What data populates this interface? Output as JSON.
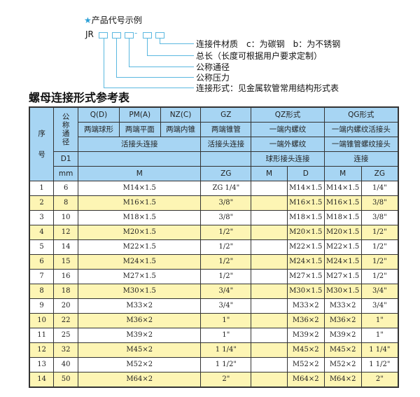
{
  "legend": {
    "heading": "产品代号示例",
    "code_prefix": "JR",
    "dash": "-",
    "star_color": "#2a9fd6",
    "labels": [
      "连接件材质　c：为碳钢　b：为不锈钢",
      "总长（长度可根据用户要求定制）",
      "公称通径",
      "公称压力",
      "连接形式：见金属软管常用结构形式表"
    ]
  },
  "title": "螺母连接形式参考表",
  "colors": {
    "header": "#a7d5f3",
    "alt_row": "#fdf5b4"
  },
  "header": {
    "seq": "序号",
    "dn": "公称通径",
    "d1": "D1",
    "mm": "mm",
    "r1": [
      "Q(D)",
      "PM(A)",
      "NZ(C)",
      "GZ",
      "QZ形式",
      "QG形式"
    ],
    "r2": [
      "两端球形",
      "两端平面",
      "两端内锥",
      "两端锥管",
      "一端内螺纹",
      "一端内螺纹活接头"
    ],
    "r3": [
      "活接头连接",
      "活接头连接",
      "一端外螺纹",
      "一端锥管螺纹接头"
    ],
    "r4": [
      "球形接头连接",
      "连接"
    ],
    "r5": [
      "M",
      "ZG",
      "M",
      "D",
      "M",
      "ZG"
    ]
  },
  "rows": [
    {
      "n": "1",
      "dn": "6",
      "m": "M14×1.5",
      "zg": "ZG 1/4\"",
      "qzm": "",
      "qzd": "M14×1.5",
      "qgm": "M14×1.5",
      "qgzg": "1/4\""
    },
    {
      "n": "2",
      "dn": "8",
      "m": "M16×1.5",
      "zg": "3/8\"",
      "qzm": "",
      "qzd": "M16×1.5",
      "qgm": "M16×1.5",
      "qgzg": "3/8\""
    },
    {
      "n": "3",
      "dn": "10",
      "m": "M18×1.5",
      "zg": "3/8\"",
      "qzm": "",
      "qzd": "M18×1.5",
      "qgm": "M18×1.5",
      "qgzg": "3/8\""
    },
    {
      "n": "4",
      "dn": "12",
      "m": "M20×1.5",
      "zg": "1/2\"",
      "qzm": "",
      "qzd": "M20×1.5",
      "qgm": "M20×1.5",
      "qgzg": "1/2\""
    },
    {
      "n": "5",
      "dn": "14",
      "m": "M22×1.5",
      "zg": "1/2\"",
      "qzm": "",
      "qzd": "M22×1.5",
      "qgm": "M22×1.5",
      "qgzg": "1/2\""
    },
    {
      "n": "6",
      "dn": "15",
      "m": "M24×1.5",
      "zg": "1/2\"",
      "qzm": "",
      "qzd": "M24×1.5",
      "qgm": "M24×1.5",
      "qgzg": "1/2\""
    },
    {
      "n": "7",
      "dn": "16",
      "m": "M27×1.5",
      "zg": "1/2\"",
      "qzm": "",
      "qzd": "M27×1.5",
      "qgm": "M27×1.5",
      "qgzg": "1/2\""
    },
    {
      "n": "8",
      "dn": "18",
      "m": "M30×1.5",
      "zg": "3/4\"",
      "qzm": "",
      "qzd": "M30×1.5",
      "qgm": "M30×1.5",
      "qgzg": "3/4\""
    },
    {
      "n": "9",
      "dn": "20",
      "m": "M33×2",
      "zg": "3/4\"",
      "qzm": "",
      "qzd": "M33×2",
      "qgm": "M33×2",
      "qgzg": "3/4\""
    },
    {
      "n": "10",
      "dn": "22",
      "m": "M36×2",
      "zg": "1\"",
      "qzm": "",
      "qzd": "M36×2",
      "qgm": "M36×2",
      "qgzg": "1\""
    },
    {
      "n": "11",
      "dn": "25",
      "m": "M39×2",
      "zg": "1\"",
      "qzm": "",
      "qzd": "M39×2",
      "qgm": "M39×2",
      "qgzg": "1\""
    },
    {
      "n": "12",
      "dn": "32",
      "m": "M45×2",
      "zg": "1 1/4\"",
      "qzm": "",
      "qzd": "M45×2",
      "qgm": "M45×2",
      "qgzg": "1 1/4\""
    },
    {
      "n": "13",
      "dn": "40",
      "m": "M52×2",
      "zg": "1 1/2\"",
      "qzm": "",
      "qzd": "M52×2",
      "qgm": "M52×2",
      "qgzg": "1 1/2\""
    },
    {
      "n": "14",
      "dn": "50",
      "m": "M64×2",
      "zg": "2\"",
      "qzm": "",
      "qzd": "M64×2",
      "qgm": "M64×2",
      "qgzg": "2\""
    }
  ]
}
